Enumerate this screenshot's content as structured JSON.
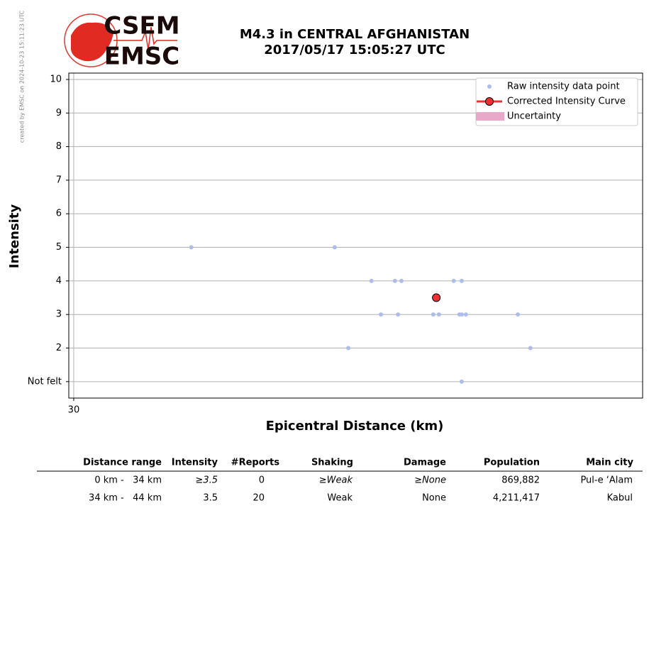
{
  "created_note": "created by EMSC on 2024-10-23 15:11:23 UTC",
  "logo": {
    "top": "CSEM",
    "bottom": "EMSC"
  },
  "chart_data": {
    "type": "scatter",
    "title": [
      "M4.3 in CENTRAL AFGHANISTAN",
      "2017/05/17 15:05:27 UTC"
    ],
    "x_label": "Epicentral Distance (km)",
    "y_label": "Intensity",
    "xlim": [
      29.87,
      45
    ],
    "xticks": [
      30
    ],
    "ylim": [
      0.51,
      10.19
    ],
    "yticks": [
      {
        "value": 1,
        "label": "Not felt"
      },
      2,
      3,
      4,
      5,
      6,
      7,
      8,
      9,
      10
    ],
    "grid": true,
    "legend_position": "upper right",
    "series": [
      {
        "name": "Raw intensity data point",
        "color": "#aebde8",
        "x": [
          33.1,
          36.88,
          37.24,
          37.85,
          38.1,
          38.47,
          38.55,
          38.64,
          39.48,
          39.63,
          40.02,
          40.17,
          40.23,
          40.23,
          40.23,
          40.34,
          41.71,
          42.04
        ],
        "values": [
          5,
          5,
          2,
          4,
          3,
          4,
          3,
          4,
          3,
          3,
          4,
          3,
          3,
          4,
          1,
          3,
          3,
          2
        ]
      },
      {
        "name": "Corrected Intensity Curve",
        "color": "#f03030",
        "x": [
          39.56
        ],
        "values": [
          3.5
        ]
      },
      {
        "name": "Uncertainty",
        "color": "#e8a8c8",
        "x": [],
        "values": []
      }
    ]
  },
  "table": {
    "columns": [
      "Distance range",
      "Intensity",
      "#Reports",
      "Shaking",
      "Damage",
      "Population",
      "Main city"
    ],
    "rows": [
      [
        "0 km -   34 km",
        "≥3.5",
        "0",
        "≥Weak",
        "≥None",
        "869,882",
        "Pul-e ‘Alam"
      ],
      [
        "34 km -   44 km",
        "3.5",
        "20",
        "Weak",
        "None",
        "4,211,417",
        "Kabul"
      ]
    ]
  }
}
